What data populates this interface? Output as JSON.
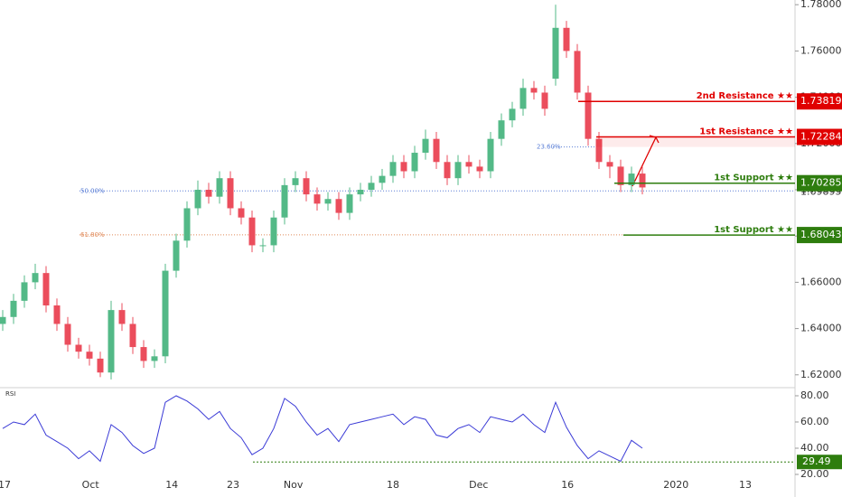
{
  "chart_data": [
    {
      "type": "candlestick",
      "open": [
        1.642,
        1.645,
        1.652,
        1.66,
        1.664,
        1.65,
        1.642,
        1.633,
        1.63,
        1.627,
        1.621,
        1.648,
        1.642,
        1.632,
        1.626,
        1.628,
        1.665,
        1.678,
        1.692,
        1.7,
        1.697,
        1.705,
        1.692,
        1.688,
        1.676,
        1.676,
        1.688,
        1.702,
        1.705,
        1.698,
        1.694,
        1.696,
        1.69,
        1.698,
        1.7,
        1.703,
        1.706,
        1.712,
        1.708,
        1.716,
        1.722,
        1.712,
        1.705,
        1.712,
        1.71,
        1.708,
        1.722,
        1.73,
        1.735,
        1.744,
        1.742,
        1.748,
        1.77,
        1.76,
        1.742,
        1.722,
        1.712,
        1.71,
        1.702,
        1.707
      ],
      "high": [
        1.648,
        1.655,
        1.663,
        1.668,
        1.667,
        1.653,
        1.645,
        1.636,
        1.633,
        1.63,
        1.652,
        1.651,
        1.645,
        1.635,
        1.631,
        1.668,
        1.681,
        1.695,
        1.704,
        1.703,
        1.708,
        1.708,
        1.695,
        1.691,
        1.679,
        1.691,
        1.705,
        1.708,
        1.708,
        1.701,
        1.699,
        1.699,
        1.701,
        1.703,
        1.706,
        1.709,
        1.715,
        1.715,
        1.719,
        1.726,
        1.725,
        1.715,
        1.715,
        1.715,
        1.713,
        1.725,
        1.733,
        1.738,
        1.748,
        1.747,
        1.745,
        1.78,
        1.773,
        1.763,
        1.745,
        1.725,
        1.715,
        1.713,
        1.71,
        1.71
      ],
      "low": [
        1.639,
        1.642,
        1.649,
        1.657,
        1.647,
        1.639,
        1.63,
        1.627,
        1.624,
        1.619,
        1.618,
        1.639,
        1.629,
        1.623,
        1.623,
        1.625,
        1.662,
        1.675,
        1.689,
        1.694,
        1.694,
        1.689,
        1.685,
        1.673,
        1.673,
        1.673,
        1.685,
        1.699,
        1.695,
        1.691,
        1.691,
        1.687,
        1.687,
        1.695,
        1.697,
        1.7,
        1.703,
        1.705,
        1.705,
        1.713,
        1.709,
        1.702,
        1.702,
        1.707,
        1.705,
        1.705,
        1.719,
        1.727,
        1.732,
        1.739,
        1.732,
        1.745,
        1.757,
        1.739,
        1.719,
        1.709,
        1.705,
        1.699,
        1.699,
        1.698
      ],
      "close": [
        1.645,
        1.652,
        1.66,
        1.664,
        1.65,
        1.642,
        1.633,
        1.63,
        1.627,
        1.621,
        1.648,
        1.642,
        1.632,
        1.626,
        1.628,
        1.665,
        1.678,
        1.692,
        1.7,
        1.697,
        1.705,
        1.692,
        1.688,
        1.676,
        1.676,
        1.688,
        1.702,
        1.705,
        1.698,
        1.694,
        1.696,
        1.69,
        1.698,
        1.7,
        1.703,
        1.706,
        1.712,
        1.708,
        1.716,
        1.722,
        1.712,
        1.705,
        1.712,
        1.71,
        1.708,
        1.722,
        1.73,
        1.735,
        1.744,
        1.742,
        1.735,
        1.77,
        1.76,
        1.742,
        1.722,
        1.712,
        1.71,
        1.702,
        1.707,
        1.701
      ],
      "up_color": "#53b987",
      "down_color": "#eb4d5c",
      "xlim": [
        -0.25,
        73.083
      ],
      "xticks": [
        {
          "value": 0.17,
          "label": "17"
        },
        {
          "value": 8.1,
          "label": "Oct"
        },
        {
          "value": 15.6,
          "label": "14"
        },
        {
          "value": 21.25,
          "label": "23"
        },
        {
          "value": 26.8,
          "label": "Nov"
        },
        {
          "value": 36,
          "label": "18"
        },
        {
          "value": 43.9,
          "label": "Dec"
        },
        {
          "value": 52.1,
          "label": "16"
        },
        {
          "value": 62.1,
          "label": "2020"
        },
        {
          "value": 68.5,
          "label": "13"
        }
      ],
      "ylim": [
        1.61484,
        1.78203
      ],
      "yticks": [
        {
          "value": 1.62,
          "label": "1.62000"
        },
        {
          "value": 1.64,
          "label": "1.64000"
        },
        {
          "value": 1.66,
          "label": "1.66000"
        },
        {
          "value": 1.68,
          "label": "1.68000"
        },
        {
          "value": 1.7,
          "label": "1.70000"
        },
        {
          "value": 1.72,
          "label": "1.72000"
        },
        {
          "value": 1.74,
          "label": "1.74000"
        },
        {
          "value": 1.76,
          "label": "1.76000"
        },
        {
          "value": 1.78,
          "label": "1.78000"
        }
      ],
      "last_price": {
        "value": 1.69895,
        "label": "1.69895"
      },
      "levels": [
        {
          "label": "2nd Resistance ★★",
          "value": 1.73819,
          "color": "#e00000"
        },
        {
          "label": "1st Resistance ★★",
          "value": 1.72284,
          "color": "#e00000"
        },
        {
          "label": "1st Support ★★",
          "value": 1.70285,
          "color": "#2e7d0e"
        },
        {
          "label": "1st Support ★★",
          "value": 1.68043,
          "color": "#2e7d0e"
        }
      ],
      "fib_levels": [
        {
          "label": "23.60%",
          "value": 1.7185,
          "color": "#5b7fd6"
        },
        {
          "label": "50.00%",
          "value": 1.6995,
          "color": "#5b7fd6"
        },
        {
          "label": "61.80%",
          "value": 1.6805,
          "color": "#e08a5a"
        }
      ]
    },
    {
      "type": "line",
      "title": "RSI",
      "series": [
        {
          "name": "RSI",
          "color": "#3a3ad6",
          "values": [
            55,
            60,
            58,
            66,
            50,
            45,
            40,
            32,
            38,
            30,
            58,
            52,
            42,
            36,
            40,
            75,
            80,
            76,
            70,
            62,
            68,
            55,
            48,
            35,
            40,
            55,
            78,
            72,
            60,
            50,
            55,
            45,
            58,
            60,
            62,
            64,
            66,
            58,
            64,
            62,
            50,
            48,
            55,
            58,
            52,
            64,
            62,
            60,
            66,
            58,
            52,
            75,
            56,
            42,
            32,
            38,
            34,
            30,
            46,
            40
          ]
        }
      ],
      "xlim": [
        -0.25,
        73.083
      ],
      "ylim": [
        2.76,
        85.5
      ],
      "yticks": [
        {
          "value": 20,
          "label": "20.00"
        },
        {
          "value": 40,
          "label": "40.00"
        },
        {
          "value": 60,
          "label": "60.00"
        },
        {
          "value": 80,
          "label": "80.00"
        }
      ],
      "level": {
        "value": 29.49,
        "color": "#2e7d0e"
      }
    }
  ]
}
